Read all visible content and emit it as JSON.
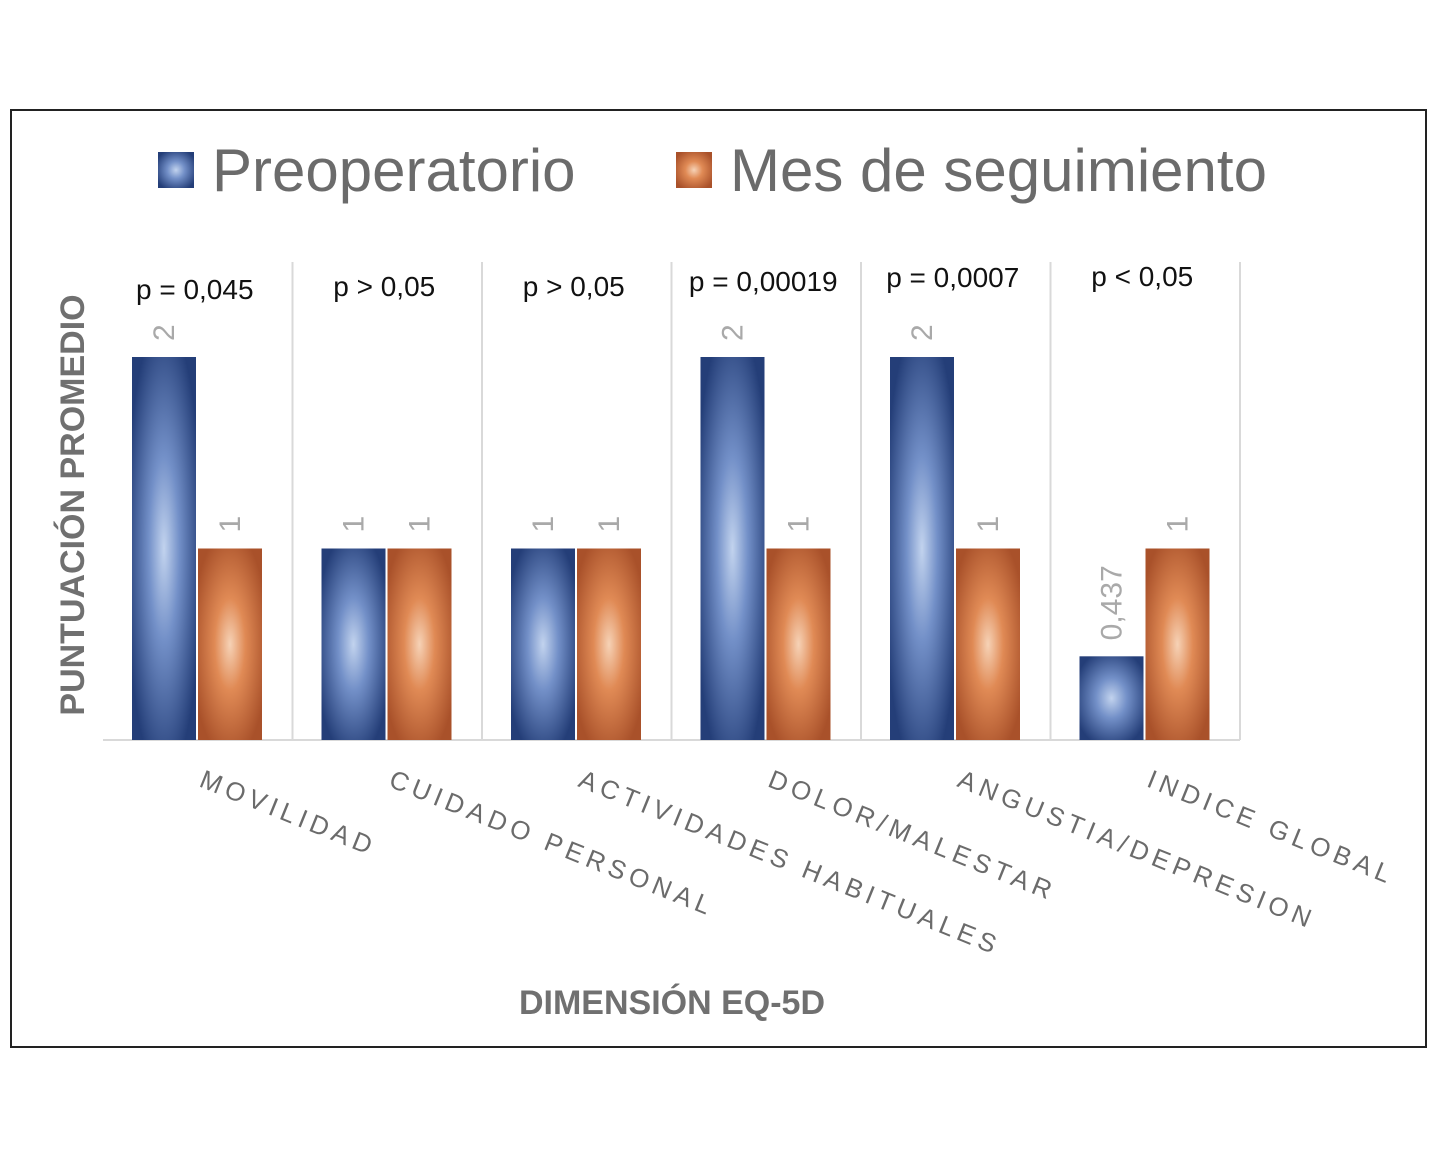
{
  "chart_data": {
    "type": "bar",
    "title": "",
    "xlabel": "DIMENSIÓN EQ-5D",
    "ylabel": "PUNTUACIÓN PROMEDIO",
    "ylim": [
      0,
      2
    ],
    "grid": false,
    "legend_position": "top",
    "categories": [
      "MOVILIDAD",
      "CUIDADO PERSONAL",
      "ACTIVIDADES HABITUALES",
      "DOLOR/MALESTAR",
      "ANGUSTIA/DEPRESION",
      "INDICE GLOBAL"
    ],
    "series": [
      {
        "name": "Preoperatorio",
        "values": [
          2,
          1,
          1,
          2,
          2,
          0.437
        ],
        "labels": [
          "2",
          "1",
          "1",
          "2",
          "2",
          "0,437"
        ],
        "color": "#3d5a9a"
      },
      {
        "name": "Mes de seguimiento",
        "values": [
          1,
          1,
          1,
          1,
          1,
          1
        ],
        "labels": [
          "1",
          "1",
          "1",
          "1",
          "1",
          "1"
        ],
        "color": "#d0743c"
      }
    ],
    "annotations": [
      "p = 0,045",
      "p > 0,05",
      "p > 0,05",
      "p = 0,00019",
      "p = 0,0007",
      "p < 0,05"
    ]
  }
}
